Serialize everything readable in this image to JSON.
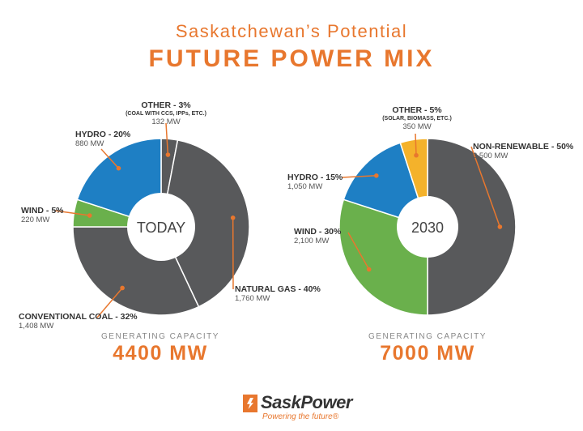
{
  "header": {
    "subtitle": "Saskatchewan’s Potential",
    "title": "FUTURE POWER MIX"
  },
  "chart_data": [
    {
      "type": "pie",
      "center_label": "TODAY",
      "caption_label": "GENERATING CAPACITY",
      "total": "4400 MW",
      "slices": [
        {
          "name": "OTHER - 3%",
          "note": "(COAL WITH CCS, IPPs, ETC.)",
          "mw": "132 MW",
          "value": 3,
          "color": "#58595b"
        },
        {
          "name": "NATURAL GAS - 40%",
          "note": "",
          "mw": "1,760 MW",
          "value": 40,
          "color": "#58595b"
        },
        {
          "name": "CONVENTIONAL COAL - 32%",
          "note": "",
          "mw": "1,408 MW",
          "value": 32,
          "color": "#58595b"
        },
        {
          "name": "WIND - 5%",
          "note": "",
          "mw": "220 MW",
          "value": 5,
          "color": "#6ab04c"
        },
        {
          "name": "HYDRO - 20%",
          "note": "",
          "mw": "880 MW",
          "value": 20,
          "color": "#1e7fc4"
        }
      ]
    },
    {
      "type": "pie",
      "center_label": "2030",
      "caption_label": "GENERATING CAPACITY",
      "total": "7000 MW",
      "slices": [
        {
          "name": "NON-RENEWABLE - 50%",
          "note": "",
          "mw": "3,500 MW",
          "value": 50,
          "color": "#58595b"
        },
        {
          "name": "WIND - 30%",
          "note": "",
          "mw": "2,100 MW",
          "value": 30,
          "color": "#6ab04c"
        },
        {
          "name": "HYDRO - 15%",
          "note": "",
          "mw": "1,050 MW",
          "value": 15,
          "color": "#1e7fc4"
        },
        {
          "name": "OTHER - 5%",
          "note": "(SOLAR, BIOMASS, ETC.)",
          "mw": "350 MW",
          "value": 5,
          "color": "#f4b22b"
        }
      ]
    }
  ],
  "logo": {
    "name": "SaskPower",
    "tagline": "Powering the future®"
  },
  "colors": {
    "accent": "#e8772e",
    "leader": "#e8772e"
  }
}
